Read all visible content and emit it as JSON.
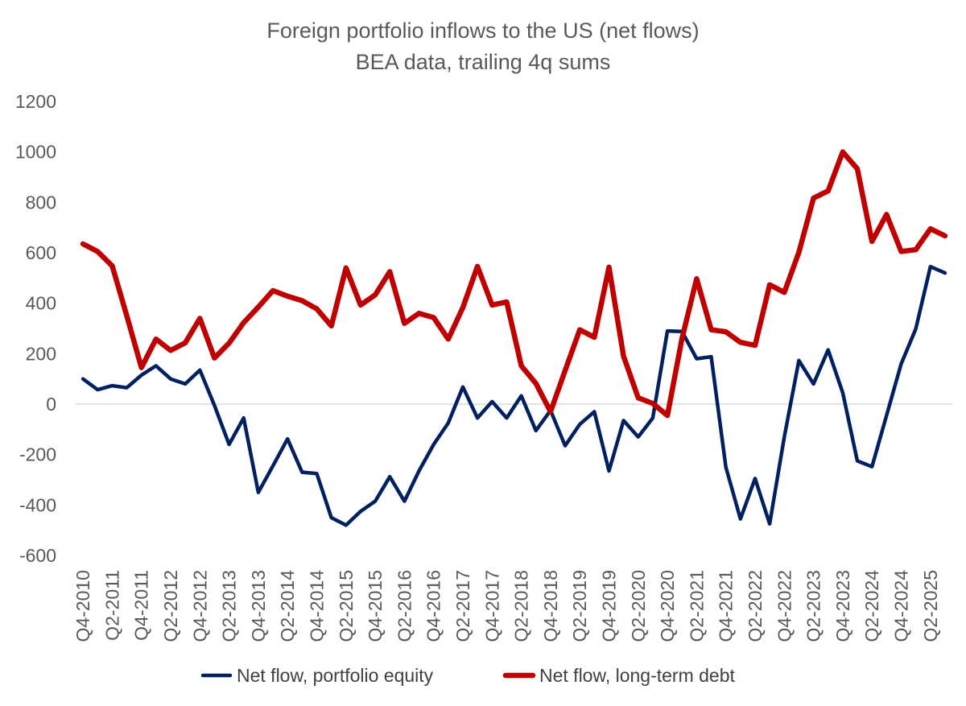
{
  "chart_data": {
    "type": "line",
    "title": "Foreign portfolio inflows to the US (net flows)",
    "subtitle": "BEA data, trailing 4q sums",
    "xlabel": "",
    "ylabel": "",
    "ylim": [
      -600,
      1200
    ],
    "yticks": [
      -600,
      -400,
      -200,
      0,
      200,
      400,
      600,
      800,
      1000,
      1200
    ],
    "grid": false,
    "legend": "bottom",
    "x": [
      "Q4-2010",
      "Q1-2011",
      "Q2-2011",
      "Q3-2011",
      "Q4-2011",
      "Q1-2012",
      "Q2-2012",
      "Q3-2012",
      "Q4-2012",
      "Q1-2013",
      "Q2-2013",
      "Q3-2013",
      "Q4-2013",
      "Q1-2014",
      "Q2-2014",
      "Q3-2014",
      "Q4-2014",
      "Q1-2015",
      "Q2-2015",
      "Q3-2015",
      "Q4-2015",
      "Q1-2016",
      "Q2-2016",
      "Q3-2016",
      "Q4-2016",
      "Q1-2017",
      "Q2-2017",
      "Q3-2017",
      "Q4-2017",
      "Q1-2018",
      "Q2-2018",
      "Q3-2018",
      "Q4-2018",
      "Q1-2019",
      "Q2-2019",
      "Q3-2019",
      "Q4-2019",
      "Q1-2020",
      "Q2-2020",
      "Q3-2020",
      "Q4-2020",
      "Q1-2021",
      "Q2-2021",
      "Q3-2021",
      "Q4-2021",
      "Q1-2022",
      "Q2-2022",
      "Q3-2022",
      "Q4-2022",
      "Q1-2023",
      "Q2-2023",
      "Q3-2023",
      "Q4-2023",
      "Q1-2024",
      "Q2-2024",
      "Q3-2024",
      "Q4-2024",
      "Q1-2025",
      "Q2-2025",
      "Q3-2025"
    ],
    "tick_labels": [
      "Q4-2010",
      "Q2-2011",
      "Q4-2011",
      "Q2-2012",
      "Q4-2012",
      "Q2-2013",
      "Q4-2013",
      "Q2-2014",
      "Q4-2014",
      "Q2-2015",
      "Q4-2015",
      "Q2-2016",
      "Q4-2016",
      "Q2-2017",
      "Q4-2017",
      "Q2-2018",
      "Q4-2018",
      "Q2-2019",
      "Q4-2019",
      "Q2-2020",
      "Q4-2020",
      "Q2-2021",
      "Q4-2021",
      "Q2-2022",
      "Q4-2022",
      "Q2-2023",
      "Q4-2023",
      "Q2-2024",
      "Q4-2024",
      "Q2-2025"
    ],
    "series": [
      {
        "name": "Net flow, portfolio equity",
        "color": "#002060",
        "values": [
          100,
          57,
          73,
          65,
          115,
          152,
          100,
          80,
          135,
          -5,
          -160,
          -55,
          -350,
          -245,
          -138,
          -270,
          -275,
          -450,
          -480,
          -425,
          -385,
          -288,
          -385,
          -265,
          -160,
          -75,
          68,
          -55,
          10,
          -55,
          33,
          -105,
          -25,
          -165,
          -80,
          -30,
          -265,
          -65,
          -130,
          -55,
          290,
          288,
          180,
          188,
          -250,
          -455,
          -295,
          -475,
          -130,
          173,
          80,
          215,
          45,
          -225,
          -248,
          -45,
          160,
          298,
          545,
          520
        ]
      },
      {
        "name": "Net flow, long-term debt",
        "color": "#C00000",
        "values": [
          635,
          605,
          548,
          350,
          145,
          258,
          213,
          243,
          340,
          183,
          242,
          323,
          385,
          450,
          428,
          410,
          378,
          310,
          540,
          393,
          433,
          525,
          320,
          360,
          343,
          258,
          383,
          546,
          393,
          405,
          152,
          82,
          -30,
          133,
          295,
          265,
          543,
          190,
          25,
          3,
          -45,
          260,
          497,
          295,
          287,
          245,
          233,
          473,
          443,
          602,
          817,
          845,
          1000,
          933,
          645,
          752,
          605,
          612,
          695,
          667
        ]
      }
    ]
  }
}
